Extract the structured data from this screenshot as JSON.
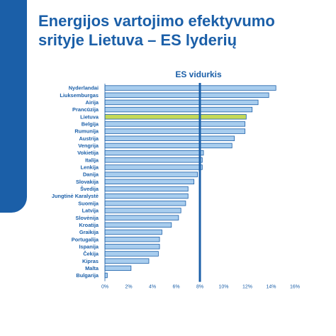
{
  "header": {
    "title_line1": "Energijos vartojimo efektyvumo",
    "title_line2": "srityje Lietuva – ES lyderių"
  },
  "colors": {
    "brand": "#1b5fa8",
    "bar_fill": "#a8cdee",
    "bar_stroke": "#1b5fa8",
    "highlight_fill": "#c5d957",
    "reference_line": "#1b5fa8"
  },
  "chart_data": {
    "type": "bar",
    "orientation": "horizontal",
    "categories": [
      "Nyderlandai",
      "Liuksemburgas",
      "Airija",
      "Prancūzija",
      "Lietuva",
      "Belgija",
      "Rumunija",
      "Austrija",
      "Vengrija",
      "Vokietija",
      "Italija",
      "Lenkija",
      "Danija",
      "Slovakija",
      "Švedija",
      "Jungtinė Karalystė",
      "Suomija",
      "Latvija",
      "Slovėnija",
      "Kroatija",
      "Graikija",
      "Portugalija",
      "Ispanija",
      "Čekija",
      "Kipras",
      "Malta",
      "Bulgarija"
    ],
    "values": [
      14.4,
      13.8,
      12.9,
      12.4,
      11.9,
      11.8,
      11.8,
      10.9,
      10.7,
      8.3,
      8.2,
      8.2,
      7.8,
      7.5,
      7.0,
      7.0,
      6.8,
      6.4,
      6.2,
      5.6,
      4.8,
      4.6,
      4.6,
      4.5,
      3.7,
      2.2,
      0.2
    ],
    "highlight": "Lietuva",
    "reference_line": {
      "label": "ES vidurkis",
      "value": 8
    },
    "xlim": [
      0,
      16
    ],
    "xticks": [
      "0%",
      "2%",
      "4%",
      "6%",
      "8%",
      "10%",
      "12%",
      "14%",
      "16%"
    ],
    "tick_values": [
      0,
      2,
      4,
      6,
      8,
      10,
      12,
      14,
      16
    ],
    "grid": false,
    "legend": "none"
  }
}
